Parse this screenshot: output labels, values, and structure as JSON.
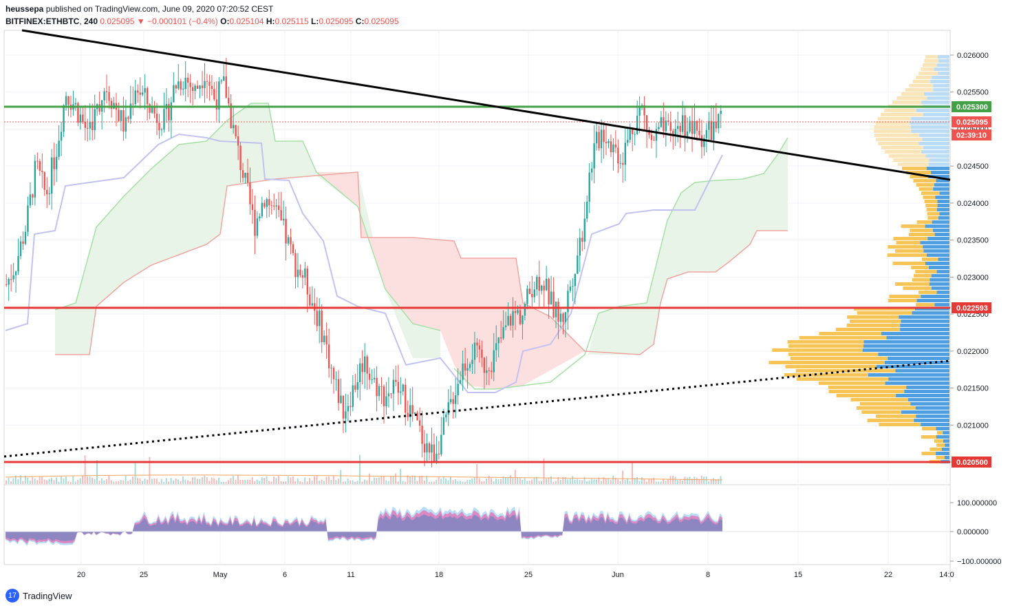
{
  "header": {
    "author": "heussepa",
    "published": "published on TradingView.com, June 09, 2020 07:20:52 CEST",
    "symbol": "BITFINEX:ETHBTC",
    "interval": "240",
    "last": "0.025095",
    "change": "−0.000101 (−0.4%)",
    "o_label": "O:",
    "o_val": "0.025104",
    "h_label": "H:",
    "h_val": "0.025115",
    "l_label": "L:",
    "l_val": "0.025095",
    "c_label": "C:",
    "c_val": "0.025095"
  },
  "brand": {
    "logo": "17",
    "name": "TradingView"
  },
  "colors": {
    "up": "#26a69a",
    "down": "#ef5350",
    "green_line": "#43a047",
    "red_line": "#e53935",
    "cloud_green": "#e3f1e3",
    "cloud_red": "#fbdada",
    "kijun": "#c5c5f0",
    "vp_blue": "#4f9fe0",
    "vp_yellow": "#f7c555"
  },
  "chart_data": {
    "type": "candlestick",
    "y_axis_labels": [
      "0.026000",
      "0.025500",
      "0.025000",
      "0.024500",
      "0.024000",
      "0.023500",
      "0.023000",
      "0.022500",
      "0.022000",
      "0.021500",
      "0.021000",
      "0.020500"
    ],
    "x_axis_labels": [
      "20",
      "25",
      "May",
      "6",
      "11",
      "18",
      "25",
      "Jun",
      "8",
      "15",
      "22",
      "14:0"
    ],
    "ylim": [
      0.0203,
      0.0264
    ],
    "price_tags": [
      {
        "value": "0.025300",
        "color": "#43a047"
      },
      {
        "value": "0.025095",
        "color": "#ef5350"
      },
      {
        "value": "02:39:10",
        "color": "#ef5350"
      },
      {
        "value": "0.022593",
        "color": "#e53935"
      },
      {
        "value": "0.020500",
        "color": "#e53935"
      }
    ],
    "horizontal_levels": [
      0.0253,
      0.022593,
      0.0205
    ],
    "indicator_axis_labels": [
      "100.000000",
      "0.000000",
      "−100.000000"
    ],
    "close_series": [
      0.0229,
      0.0232,
      0.0237,
      0.0245,
      0.0241,
      0.0247,
      0.0255,
      0.0253,
      0.025,
      0.0252,
      0.0256,
      0.0253,
      0.025,
      0.0256,
      0.0254,
      0.0252,
      0.0251,
      0.0256,
      0.0257,
      0.0255,
      0.0258,
      0.0254,
      0.0256,
      0.0249,
      0.0243,
      0.0237,
      0.0241,
      0.0239,
      0.0236,
      0.0232,
      0.023,
      0.0226,
      0.0222,
      0.0216,
      0.0212,
      0.0215,
      0.0219,
      0.0216,
      0.0214,
      0.0215,
      0.0214,
      0.0211,
      0.0208,
      0.0206,
      0.0209,
      0.0214,
      0.0218,
      0.022,
      0.0218,
      0.0219,
      0.0222,
      0.0225,
      0.0225,
      0.0229,
      0.023,
      0.0226,
      0.0224,
      0.023,
      0.0236,
      0.0246,
      0.025,
      0.0248,
      0.0246,
      0.025,
      0.0253,
      0.0248,
      0.025,
      0.0249,
      0.0251,
      0.025,
      0.0249,
      0.025,
      0.02509
    ]
  }
}
